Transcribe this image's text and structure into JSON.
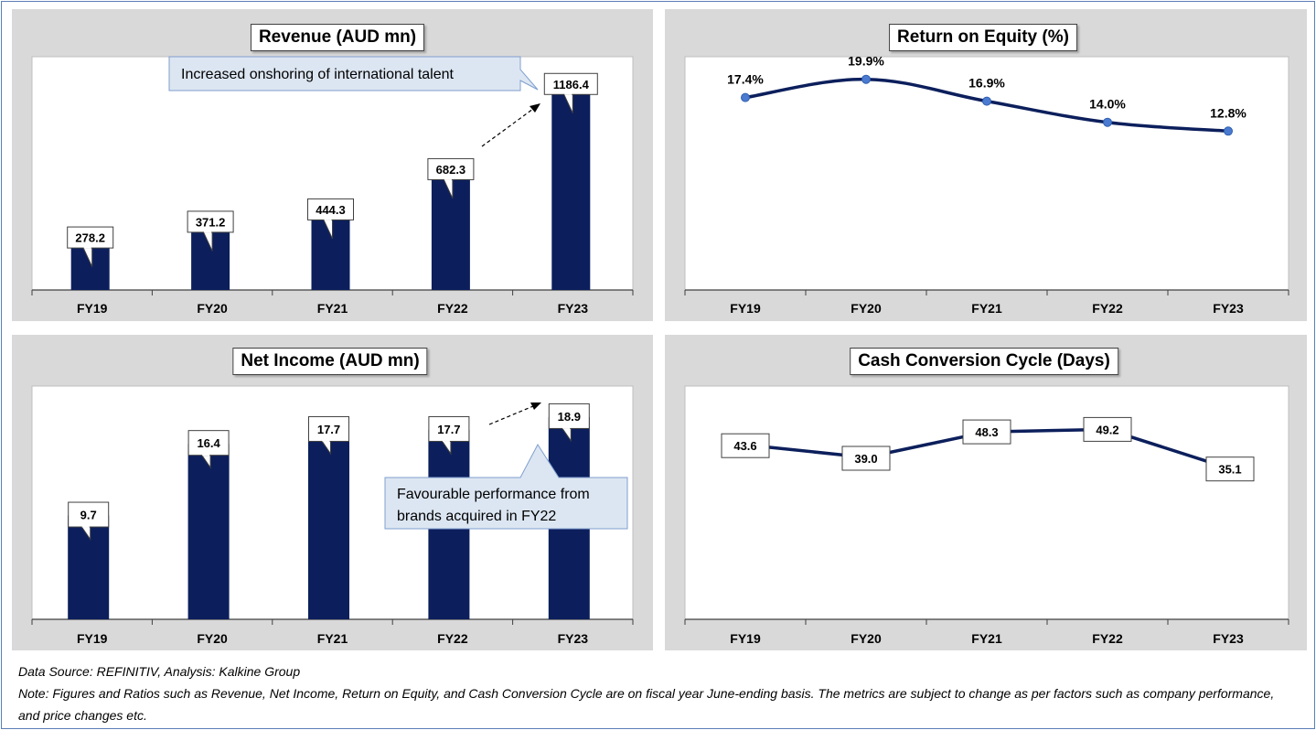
{
  "chart_data": [
    {
      "type": "bar",
      "title": "Revenue (AUD mn)",
      "categories": [
        "FY19",
        "FY20",
        "FY21",
        "FY22",
        "FY23"
      ],
      "values": [
        278.2,
        371.2,
        444.3,
        682.3,
        1186.4
      ],
      "labels": [
        "278.2",
        "371.2",
        "444.3",
        "682.3",
        "1186.4"
      ],
      "ylim": [
        0,
        1380
      ],
      "color": "#0c1f5c",
      "annotation": "Increased onshoring of international talent",
      "grid": false
    },
    {
      "type": "line",
      "title": "Return on Equity (%)",
      "categories": [
        "FY19",
        "FY20",
        "FY21",
        "FY22",
        "FY23"
      ],
      "values": [
        17.4,
        19.9,
        16.9,
        14.0,
        12.8
      ],
      "labels": [
        "17.4%",
        "19.9%",
        "16.9%",
        "14.0%",
        "12.8%"
      ],
      "ylim": [
        -9,
        23
      ],
      "color": "#0c1f5c",
      "marker_color": "#4a7bd0",
      "grid": false
    },
    {
      "type": "bar",
      "title": "Net Income (AUD mn)",
      "categories": [
        "FY19",
        "FY20",
        "FY21",
        "FY22",
        "FY23"
      ],
      "values": [
        9.7,
        16.4,
        17.7,
        17.7,
        18.9
      ],
      "labels": [
        "9.7",
        "16.4",
        "17.7",
        "17.7",
        "18.9"
      ],
      "ylim": [
        0,
        21.8
      ],
      "color": "#0c1f5c",
      "annotation_lines": [
        "Favourable performance from",
        "brands acquired in FY22"
      ],
      "grid": false
    },
    {
      "type": "line",
      "title": "Cash Conversion Cycle (Days)",
      "categories": [
        "FY19",
        "FY20",
        "FY21",
        "FY22",
        "FY23"
      ],
      "values": [
        43.6,
        39.0,
        48.3,
        49.2,
        35.1
      ],
      "labels": [
        "43.6",
        "39.0",
        "48.3",
        "49.2",
        "35.1"
      ],
      "ylim": [
        -20,
        65
      ],
      "color": "#0c1f5c",
      "grid": false
    }
  ],
  "footer": {
    "source": "Data Source: REFINITIV, Analysis: Kalkine Group",
    "note": "Note: Figures and Ratios such as Revenue, Net Income, Return on Equity, and Cash Conversion Cycle are on fiscal year June-ending basis. The metrics are subject to change as per factors such as company performance, and price changes etc."
  }
}
